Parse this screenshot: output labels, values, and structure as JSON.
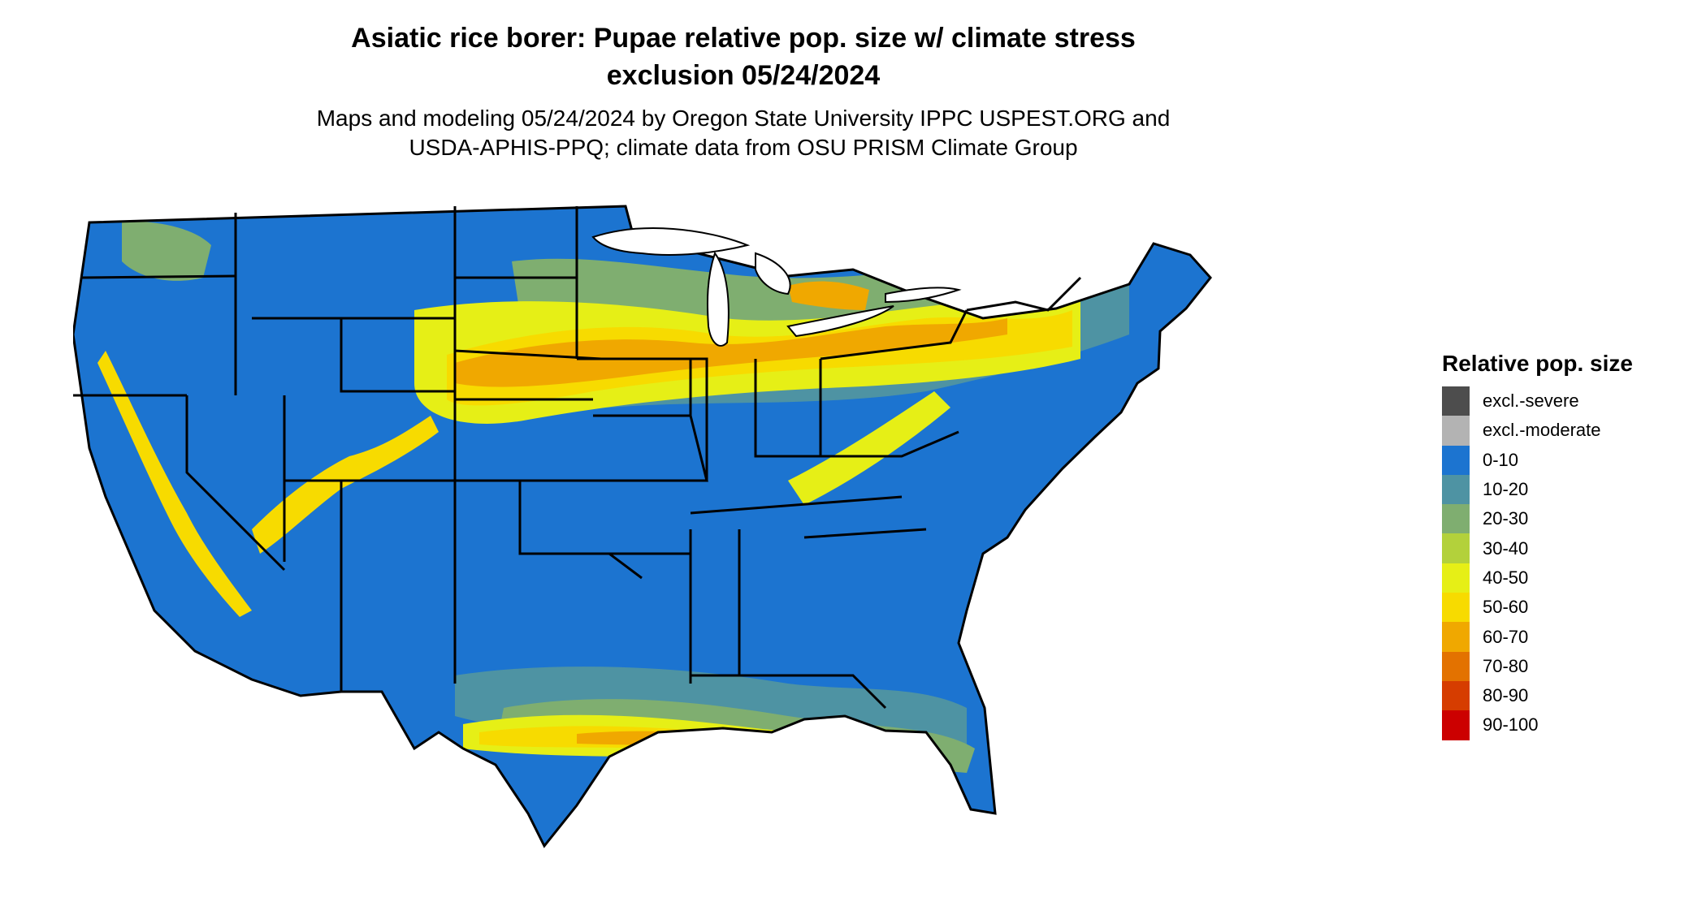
{
  "title_line1": "Asiatic rice borer: Pupae relative pop. size w/ climate stress",
  "title_line2": "exclusion 05/24/2024",
  "subtitle_line1": "Maps and modeling 05/24/2024 by Oregon State University IPPC USPEST.ORG and",
  "subtitle_line2": "USDA-APHIS-PPQ; climate data from OSU PRISM Climate Group",
  "legend": {
    "title": "Relative pop. size",
    "items": [
      {
        "label": "excl.-severe",
        "color": "#4d4d4d"
      },
      {
        "label": "excl.-moderate",
        "color": "#b3b3b3"
      },
      {
        "label": "0-10",
        "color": "#1c74d0"
      },
      {
        "label": "10-20",
        "color": "#4e93a3"
      },
      {
        "label": "20-30",
        "color": "#7fae70"
      },
      {
        "label": "30-40",
        "color": "#b3d13b"
      },
      {
        "label": "40-50",
        "color": "#e6ef16"
      },
      {
        "label": "50-60",
        "color": "#f7db00"
      },
      {
        "label": "60-70",
        "color": "#f0a800"
      },
      {
        "label": "70-80",
        "color": "#e37200"
      },
      {
        "label": "80-90",
        "color": "#d63d00"
      },
      {
        "label": "90-100",
        "color": "#cc0000"
      }
    ]
  },
  "map": {
    "region": "contiguous-united-states",
    "base_color": "#1c74d0",
    "border_color": "#000000"
  }
}
